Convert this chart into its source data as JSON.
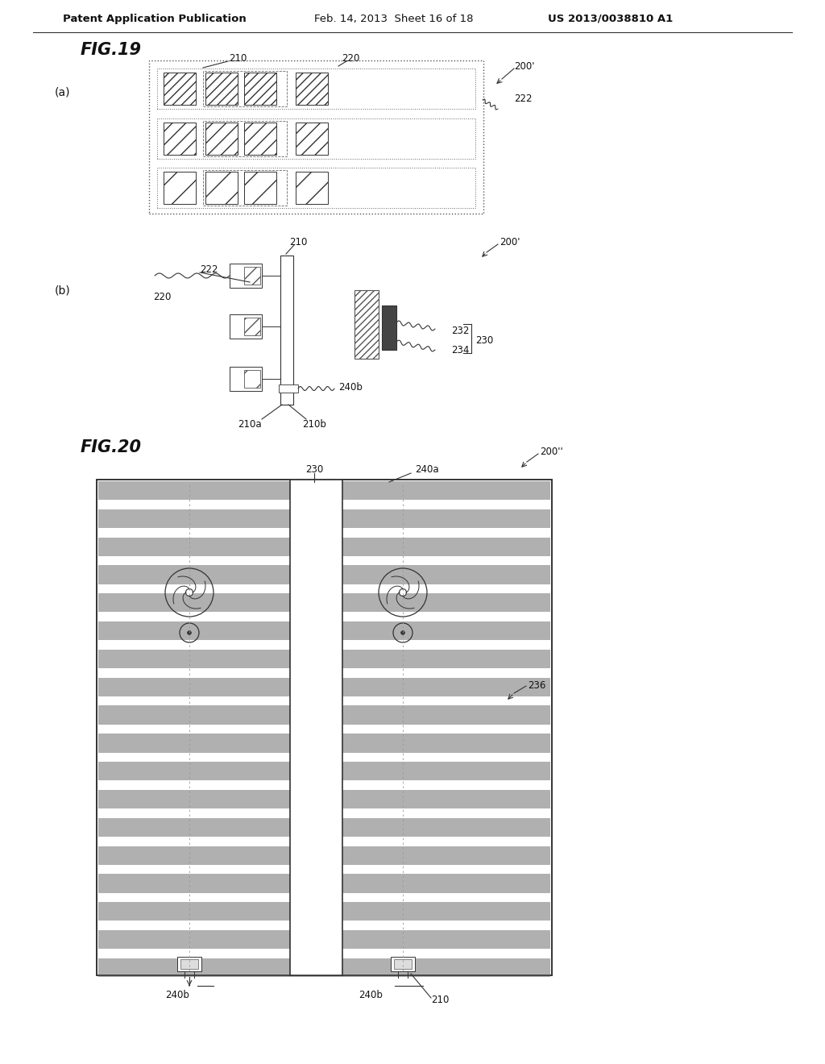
{
  "bg_color": "#ffffff",
  "header_left": "Patent Application Publication",
  "header_mid": "Feb. 14, 2013  Sheet 16 of 18",
  "header_right": "US 2013/0038810 A1",
  "fig19_label": "FIG.19",
  "fig20_label": "FIG.20",
  "line_color": "#333333",
  "stripe_dark": "#b0b0b0",
  "stripe_light": "#e0e0e0",
  "hatch_gray": "#888888"
}
